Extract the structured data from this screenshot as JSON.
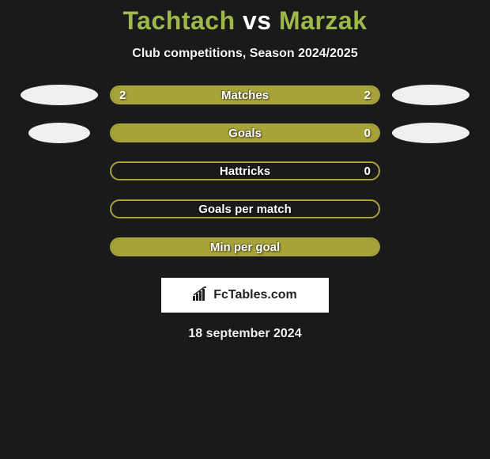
{
  "title": {
    "player1": "Tachtach",
    "vs": "vs",
    "player2": "Marzak"
  },
  "subtitle": "Club competitions, Season 2024/2025",
  "colors": {
    "bar_border": "#a8a23a",
    "bar_fill": "#a8a23a",
    "badge_bg": "#f0f0f0",
    "title_accent": "#9fb84a",
    "background": "#1a1a1a",
    "text": "#ffffff"
  },
  "stats": [
    {
      "label": "Matches",
      "left_value": "2",
      "right_value": "2",
      "left_pct": 50,
      "right_pct": 50,
      "show_badges": true,
      "left_badge_width": 98,
      "right_badge_width": 98
    },
    {
      "label": "Goals",
      "left_value": "",
      "right_value": "0",
      "left_pct": 100,
      "right_pct": 0,
      "show_badges": true,
      "left_badge_width": 78,
      "right_badge_width": 98
    },
    {
      "label": "Hattricks",
      "left_value": "",
      "right_value": "0",
      "left_pct": 0,
      "right_pct": 0,
      "show_badges": false
    },
    {
      "label": "Goals per match",
      "left_value": "",
      "right_value": "",
      "left_pct": 0,
      "right_pct": 0,
      "show_badges": false
    },
    {
      "label": "Min per goal",
      "left_value": "",
      "right_value": "",
      "left_pct": 100,
      "right_pct": 0,
      "show_badges": false
    }
  ],
  "attribution": "FcTables.com",
  "date": "18 september 2024"
}
